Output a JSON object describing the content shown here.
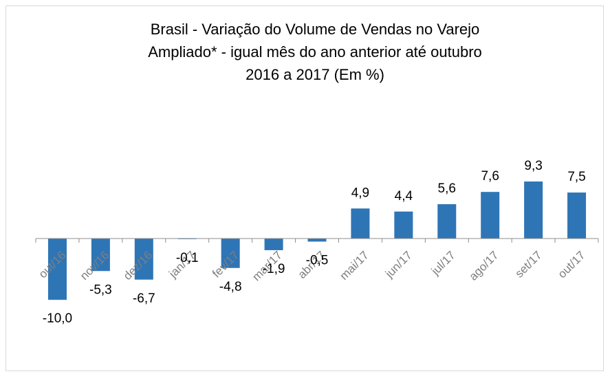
{
  "chart_data": {
    "type": "bar",
    "title": [
      "Brasil - Variação do Volume de Vendas no Varejo",
      "Ampliado* - igual mês do ano anterior até outubro",
      "2016 a 2017 (Em %)"
    ],
    "categories": [
      "out/16",
      "nov/16",
      "dez/16",
      "jan/17",
      "fev/17",
      "mar/17",
      "abr/17",
      "mai/17",
      "jun/17",
      "jul/17",
      "ago/17",
      "set/17",
      "out/17"
    ],
    "values": [
      -10.0,
      -5.3,
      -6.7,
      -0.1,
      -4.8,
      -1.9,
      -0.5,
      4.9,
      4.4,
      5.6,
      7.6,
      9.3,
      7.5
    ],
    "value_labels": [
      "-10,0",
      "-5,3",
      "-6,7",
      "-0,1",
      "-4,8",
      "-1,9",
      "-0,5",
      "4,9",
      "4,4",
      "5,6",
      "7,6",
      "9,3",
      "7,5"
    ],
    "color": "#2e75b6"
  }
}
